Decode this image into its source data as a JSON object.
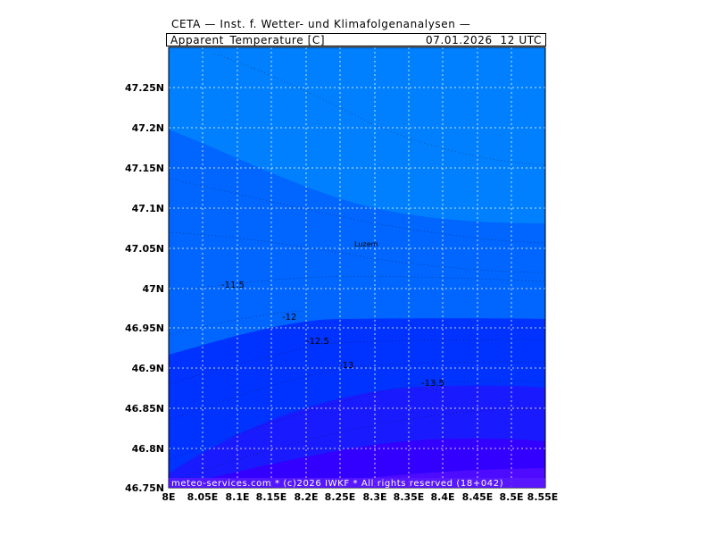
{
  "header": {
    "institute": "CETA — Inst. f. Wetter- und Klimafolgenanalysen —",
    "variable": "Apparent_Temperature [C]",
    "datetime": "07.01.2026  12 UTC"
  },
  "map": {
    "lat_labels": [
      "47.25N",
      "47.2N",
      "47.15N",
      "47.1N",
      "47.05N",
      "47N",
      "46.95N",
      "46.9N",
      "46.85N",
      "46.8N",
      "46.75N"
    ],
    "lon_labels": [
      "8E",
      "8.05E",
      "8.1E",
      "8.15E",
      "8.2E",
      "8.25E",
      "8.3E",
      "8.35E",
      "8.4E",
      "8.45E",
      "8.5E",
      "8.55E"
    ],
    "contour_labels": [
      "-11.5",
      "-12",
      "-12.5",
      "-13",
      "-13.5"
    ],
    "city": "Luzern",
    "footer": "meteo-services.com  *  (c)2026 IWKF  *  All rights reserved  (18+042)",
    "colors": {
      "band_1": "#0080ff",
      "band_2": "#0066ff",
      "band_3": "#0033ff",
      "band_4": "#1a1aff",
      "band_5": "#3300ff",
      "band_6": "#4d0cff",
      "grid": "#ffffff"
    }
  }
}
